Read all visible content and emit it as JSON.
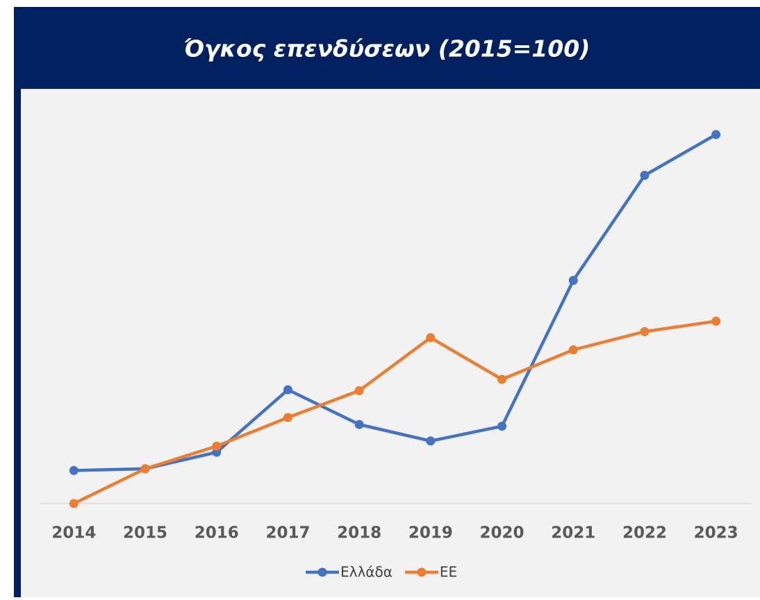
{
  "chart_data": {
    "type": "line",
    "title": "Όγκος επενδύσεων (2015=100)",
    "categories": [
      "2014",
      "2015",
      "2016",
      "2017",
      "2018",
      "2019",
      "2020",
      "2021",
      "2022",
      "2023"
    ],
    "series": [
      {
        "name": "Ελλάδα",
        "color": "#4472c4",
        "values": [
          99.8,
          100,
          101.9,
          109.1,
          105.1,
          103.2,
          104.9,
          121.7,
          133.8,
          138.5
        ]
      },
      {
        "name": "ΕΕ",
        "color": "#ed7d31",
        "values": [
          96,
          100,
          102.6,
          105.9,
          109,
          115.1,
          110.3,
          113.7,
          115.8,
          117
        ]
      }
    ],
    "ylim": [
      96,
      142
    ],
    "legend": "bottom"
  }
}
